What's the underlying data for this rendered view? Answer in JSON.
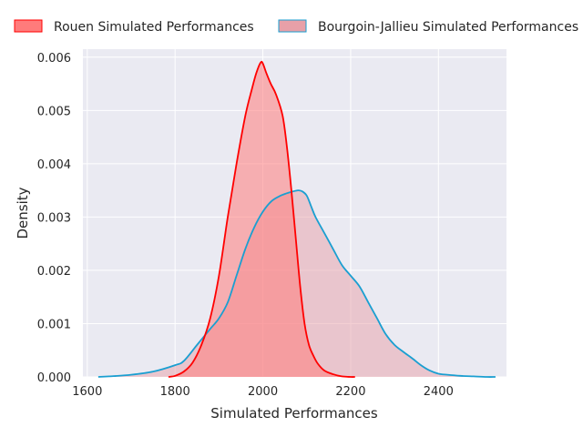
{
  "chart_data": {
    "type": "area",
    "title": "",
    "xlabel": "Simulated Performances",
    "ylabel": "Density",
    "xlim": [
      1590,
      2555
    ],
    "ylim": [
      0,
      0.00615
    ],
    "xticks": [
      1600,
      1800,
      2000,
      2200,
      2400
    ],
    "yticks": [
      0.0,
      0.001,
      0.002,
      0.003,
      0.004,
      0.005,
      0.006
    ],
    "ytick_labels": [
      "0.000",
      "0.001",
      "0.002",
      "0.003",
      "0.004",
      "0.005",
      "0.006"
    ],
    "grid": true,
    "legend_position": "top",
    "series": [
      {
        "name": "Rouen Simulated Performances",
        "line_color": "#ff0000",
        "fill_color": "#ff7b7b",
        "fill_opacity": 0.55,
        "x": [
          1785,
          1800,
          1820,
          1840,
          1860,
          1880,
          1900,
          1920,
          1940,
          1960,
          1975,
          1985,
          1995,
          2000,
          2008,
          2018,
          2030,
          2045,
          2055,
          2065,
          2075,
          2085,
          2095,
          2105,
          2115,
          2125,
          2140,
          2160,
          2180,
          2200,
          2210
        ],
        "y": [
          0.0,
          2e-05,
          0.0001,
          0.00027,
          0.0006,
          0.0011,
          0.0019,
          0.003,
          0.004,
          0.0049,
          0.0054,
          0.0057,
          0.0059,
          0.00588,
          0.0057,
          0.0055,
          0.0053,
          0.0049,
          0.0043,
          0.0035,
          0.0026,
          0.0017,
          0.001,
          0.0006,
          0.0004,
          0.00025,
          0.00012,
          5e-05,
          1e-05,
          0.0,
          0.0
        ]
      },
      {
        "name": "Bourgoin-Jallieu Simulated Performances",
        "line_color": "#1a9fd1",
        "fill_color": "#e8a0a8",
        "fill_opacity": 0.5,
        "x": [
          1625,
          1650,
          1700,
          1750,
          1800,
          1820,
          1850,
          1880,
          1900,
          1920,
          1940,
          1960,
          1980,
          2000,
          2020,
          2040,
          2060,
          2080,
          2090,
          2100,
          2110,
          2120,
          2140,
          2160,
          2180,
          2200,
          2220,
          2240,
          2260,
          2280,
          2300,
          2320,
          2340,
          2360,
          2380,
          2400,
          2420,
          2450,
          2480,
          2510,
          2530
        ],
        "y": [
          0.0,
          1e-05,
          4e-05,
          0.0001,
          0.00022,
          0.0003,
          0.0006,
          0.0009,
          0.0011,
          0.0014,
          0.0019,
          0.0024,
          0.0028,
          0.0031,
          0.0033,
          0.0034,
          0.00346,
          0.0035,
          0.00348,
          0.0034,
          0.0032,
          0.003,
          0.0027,
          0.0024,
          0.0021,
          0.0019,
          0.0017,
          0.0014,
          0.0011,
          0.0008,
          0.0006,
          0.00047,
          0.00035,
          0.00022,
          0.00012,
          6e-05,
          4e-05,
          2e-05,
          1e-05,
          0.0,
          0.0
        ]
      }
    ]
  }
}
